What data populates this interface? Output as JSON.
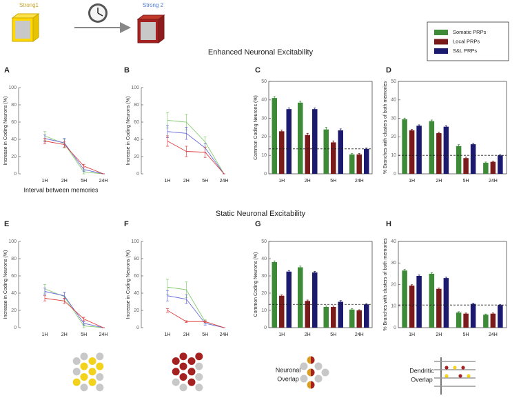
{
  "labels": {
    "strong1": "Strong1",
    "strong2": "Strong 2",
    "neuronal_overlap": [
      "Neuronal",
      "Overlap"
    ],
    "dendritic_overlap": [
      "Dendritic",
      "Overlap"
    ]
  },
  "sections": [
    "Enhanced Neuronal Excitability",
    "Static Neuronal Excitability"
  ],
  "legend": [
    {
      "name": "Somatic PRPs",
      "color": "#3d8b37"
    },
    {
      "name": "Local PRPs",
      "color": "#7b1a1a"
    },
    {
      "name": "S&L PRPs",
      "color": "#1c1a6e"
    }
  ],
  "chart_data": [
    {
      "type": "line",
      "panel": "A",
      "ylabel": "Increase in Coding Neurons (%)",
      "xlabel": "Interval between memories",
      "categories": [
        "1H",
        "2H",
        "5H",
        "24H"
      ],
      "ylim": [
        0,
        100
      ],
      "yticks": [
        0,
        20,
        40,
        60,
        80,
        100
      ],
      "series": [
        {
          "color": "#82cc6e",
          "values": [
            44,
            35,
            2,
            0
          ],
          "errors": [
            5,
            5,
            2,
            0
          ]
        },
        {
          "color": "#6a6ad8",
          "values": [
            41,
            36,
            5,
            0
          ],
          "errors": [
            4,
            5,
            2,
            0
          ]
        },
        {
          "color": "#e04040",
          "values": [
            38,
            34,
            9,
            0
          ],
          "errors": [
            3,
            3,
            2,
            0
          ]
        }
      ]
    },
    {
      "type": "line",
      "panel": "B",
      "ylabel": "Increase in Coding Neurons (%)",
      "categories": [
        "1H",
        "2H",
        "5H",
        "24H"
      ],
      "ylim": [
        0,
        100
      ],
      "yticks": [
        0,
        20,
        40,
        60,
        80,
        100
      ],
      "series": [
        {
          "color": "#82cc6e",
          "values": [
            62,
            60,
            37,
            0
          ],
          "errors": [
            9,
            9,
            6,
            0
          ]
        },
        {
          "color": "#6a6ad8",
          "values": [
            49,
            47,
            30,
            0
          ],
          "errors": [
            7,
            7,
            5,
            0
          ]
        },
        {
          "color": "#e04040",
          "values": [
            38,
            26,
            25,
            0
          ],
          "errors": [
            6,
            6,
            6,
            0
          ]
        }
      ]
    },
    {
      "type": "bar",
      "panel": "C",
      "ylabel": "Common Coding Neurons (%)",
      "categories": [
        "1H",
        "2H",
        "5H",
        "24H"
      ],
      "ylim": [
        0,
        50
      ],
      "yticks": [
        0,
        10,
        20,
        30,
        40,
        50
      ],
      "reference": 13.5,
      "series": [
        {
          "color": "#3d8b37",
          "values": [
            41,
            38.5,
            24,
            10.5
          ],
          "errors": [
            0.8,
            0.8,
            1.2,
            0.6
          ]
        },
        {
          "color": "#7b1a1a",
          "values": [
            23,
            21,
            17,
            10.5
          ],
          "errors": [
            0.7,
            0.9,
            0.8,
            0.5
          ]
        },
        {
          "color": "#1c1a6e",
          "values": [
            35,
            35,
            23.5,
            13.5
          ],
          "errors": [
            0.6,
            0.6,
            0.8,
            0.5
          ]
        }
      ]
    },
    {
      "type": "bar",
      "panel": "D",
      "ylabel": "% Branches with clusters of both memories",
      "categories": [
        "1H",
        "2H",
        "5H",
        "24H"
      ],
      "ylim": [
        0,
        50
      ],
      "yticks": [
        0,
        10,
        20,
        30,
        40,
        50
      ],
      "reference": 10,
      "series": [
        {
          "color": "#3d8b37",
          "values": [
            29.5,
            28.5,
            15,
            6
          ],
          "errors": [
            0.6,
            0.6,
            0.8,
            0.4
          ]
        },
        {
          "color": "#7b1a1a",
          "values": [
            23.5,
            22,
            8.5,
            6.5
          ],
          "errors": [
            0.5,
            0.5,
            0.5,
            0.4
          ]
        },
        {
          "color": "#1c1a6e",
          "values": [
            26,
            25.5,
            16,
            10
          ],
          "errors": [
            0.5,
            0.5,
            0.5,
            0.4
          ]
        }
      ]
    },
    {
      "type": "line",
      "panel": "E",
      "ylabel": "Increase in Coding Neurons (%)",
      "categories": [
        "1H",
        "2H",
        "5H",
        "24H"
      ],
      "ylim": [
        0,
        100
      ],
      "yticks": [
        0,
        20,
        40,
        60,
        80,
        100
      ],
      "series": [
        {
          "color": "#82cc6e",
          "values": [
            45,
            36,
            2,
            0
          ],
          "errors": [
            5,
            5,
            2,
            0
          ]
        },
        {
          "color": "#6a6ad8",
          "values": [
            42,
            37,
            5,
            0
          ],
          "errors": [
            4,
            4,
            2,
            0
          ]
        },
        {
          "color": "#e04040",
          "values": [
            34,
            31,
            10,
            0
          ],
          "errors": [
            3,
            3,
            2,
            0
          ]
        }
      ]
    },
    {
      "type": "line",
      "panel": "F",
      "ylabel": "Increase in Coding Neurons (%)",
      "categories": [
        "1H",
        "2H",
        "5H",
        "24H"
      ],
      "ylim": [
        0,
        100
      ],
      "yticks": [
        0,
        20,
        40,
        60,
        80,
        100
      ],
      "series": [
        {
          "color": "#82cc6e",
          "values": [
            47,
            44,
            7,
            0
          ],
          "errors": [
            9,
            9,
            2,
            0
          ]
        },
        {
          "color": "#6a6ad8",
          "values": [
            37,
            33,
            5,
            0
          ],
          "errors": [
            6,
            5,
            2,
            0
          ]
        },
        {
          "color": "#e04040",
          "values": [
            20,
            7,
            7,
            0
          ],
          "errors": [
            2,
            1,
            1,
            0
          ]
        }
      ]
    },
    {
      "type": "bar",
      "panel": "G",
      "ylabel": "Common Coding Neurons (%)",
      "categories": [
        "1H",
        "2H",
        "5H",
        "24H"
      ],
      "ylim": [
        0,
        50
      ],
      "yticks": [
        0,
        10,
        20,
        30,
        40,
        50
      ],
      "reference": 13.5,
      "series": [
        {
          "color": "#3d8b37",
          "values": [
            38,
            35,
            12,
            10.5
          ],
          "errors": [
            0.7,
            0.7,
            0.6,
            0.5
          ]
        },
        {
          "color": "#7b1a1a",
          "values": [
            18.5,
            15.5,
            12,
            10
          ],
          "errors": [
            0.5,
            0.5,
            0.5,
            0.4
          ]
        },
        {
          "color": "#1c1a6e",
          "values": [
            32.5,
            32,
            15,
            13.5
          ],
          "errors": [
            0.6,
            0.6,
            0.7,
            0.4
          ]
        }
      ]
    },
    {
      "type": "bar",
      "panel": "H",
      "ylabel": "% Branches with clusters of both memories",
      "categories": [
        "1H",
        "2H",
        "5H",
        "24H"
      ],
      "ylim": [
        0,
        40
      ],
      "yticks": [
        0,
        10,
        20,
        30,
        40
      ],
      "reference": 10.5,
      "series": [
        {
          "color": "#3d8b37",
          "values": [
            26.5,
            25,
            7,
            6
          ],
          "errors": [
            0.5,
            0.5,
            0.4,
            0.3
          ]
        },
        {
          "color": "#7b1a1a",
          "values": [
            19.5,
            18,
            6.5,
            6.5
          ],
          "errors": [
            0.4,
            0.4,
            0.3,
            0.3
          ]
        },
        {
          "color": "#1c1a6e",
          "values": [
            24,
            23,
            11,
            10.5
          ],
          "errors": [
            0.4,
            0.4,
            0.4,
            0.3
          ]
        }
      ]
    }
  ]
}
